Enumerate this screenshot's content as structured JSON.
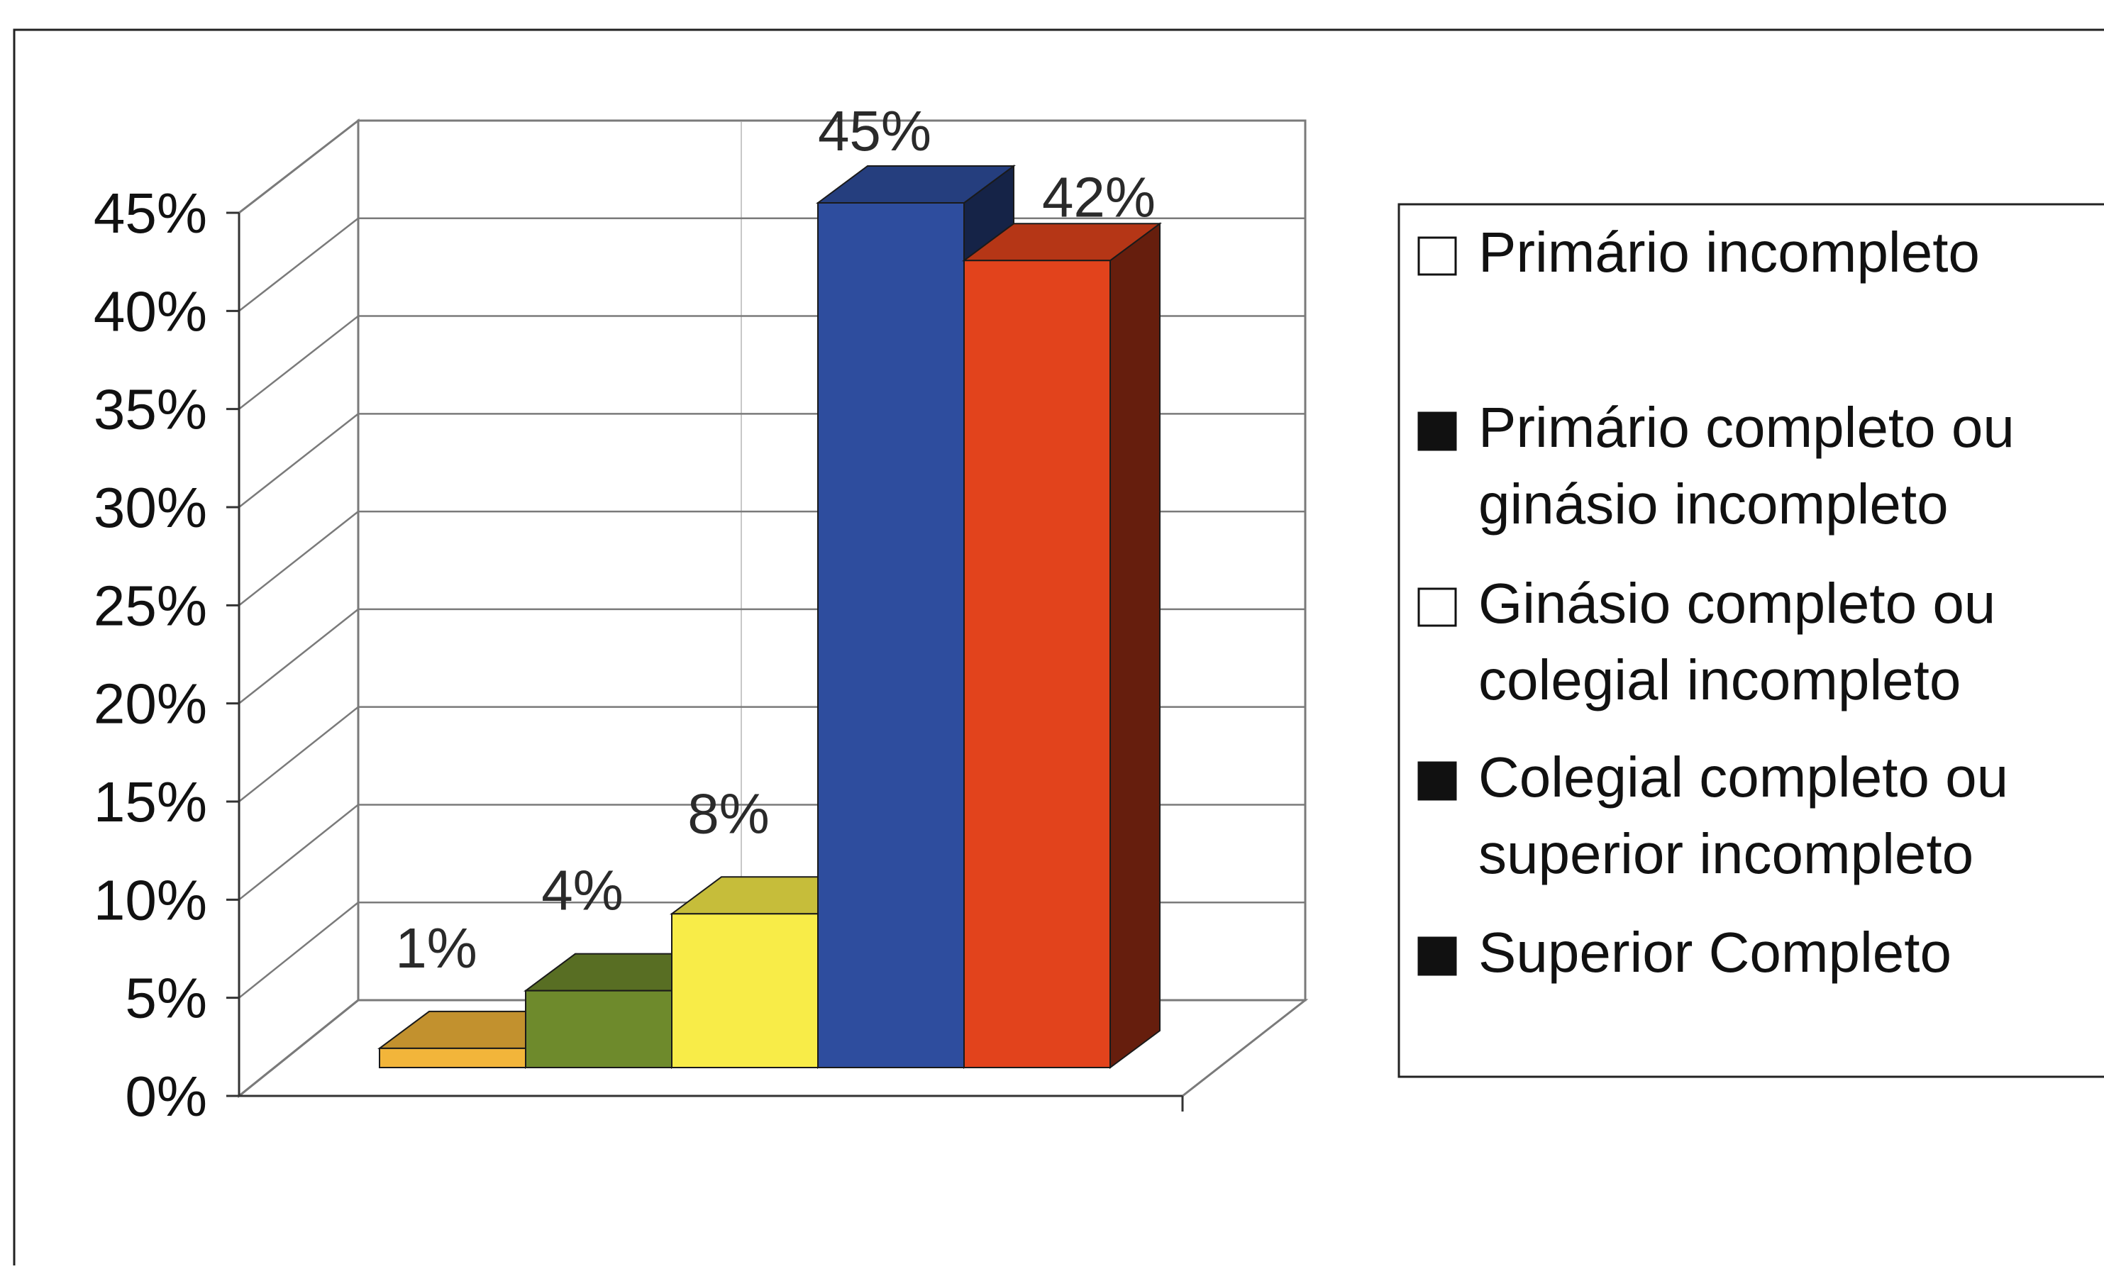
{
  "chart_data": {
    "type": "bar",
    "style": "3d-column",
    "categories": [
      "Primário incompleto",
      "Primário completo ou ginásio incompleto",
      "Ginásio completo ou colegial incompleto",
      "Colegial completo ou superior incompleto",
      "Superior Completo"
    ],
    "values": [
      1,
      4,
      8,
      45,
      42
    ],
    "data_labels": [
      "1%",
      "4%",
      "8%",
      "45%",
      "42%"
    ],
    "colors": [
      "#F2B53A",
      "#6E8A2C",
      "#F8EC48",
      "#2E4D9E",
      "#E2431C"
    ],
    "legend_swatch_colors": [
      "#ffffff",
      "#111111",
      "#ffffff",
      "#111111",
      "#111111"
    ],
    "y_ticks": [
      "0%",
      "5%",
      "10%",
      "15%",
      "20%",
      "25%",
      "30%",
      "35%",
      "40%",
      "45%"
    ],
    "ylim": [
      0,
      45
    ],
    "grid": true,
    "legend_position": "right",
    "legend": [
      [
        "Primário incompleto"
      ],
      [
        "Primário completo ou",
        "ginásio incompleto"
      ],
      [
        "Ginásio completo ou",
        "colegial incompleto"
      ],
      [
        "Colegial completo ou",
        "superior incompleto"
      ],
      [
        "Superior Completo"
      ]
    ]
  }
}
